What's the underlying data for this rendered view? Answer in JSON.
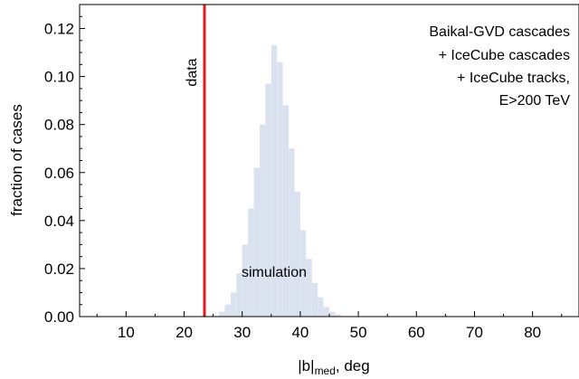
{
  "chart_data": {
    "type": "bar",
    "title": "",
    "xlabel_main": "|b|",
    "xlabel_sub": "med",
    "xlabel_suffix": ", deg",
    "ylabel": "fraction of cases",
    "xlim": [
      2,
      88
    ],
    "ylim": [
      0,
      0.13
    ],
    "x_ticks": [
      10,
      20,
      30,
      40,
      50,
      60,
      70,
      80
    ],
    "y_ticks": [
      0.0,
      0.02,
      0.04,
      0.06,
      0.08,
      0.1,
      0.12
    ],
    "y_tick_labels": [
      "0.00",
      "0.02",
      "0.04",
      "0.06",
      "0.08",
      "0.10",
      "0.12"
    ],
    "bin_width": 1,
    "series": [
      {
        "name": "simulation",
        "color": "#dbe2ef",
        "label_color": "#5f86bf",
        "bin_lefts": [
          26,
          27,
          28,
          29,
          30,
          31,
          32,
          33,
          34,
          35,
          36,
          37,
          38,
          39,
          40,
          41,
          42,
          43,
          44,
          45,
          46
        ],
        "values": [
          0.002,
          0.005,
          0.01,
          0.018,
          0.03,
          0.045,
          0.062,
          0.08,
          0.097,
          0.113,
          0.106,
          0.088,
          0.07,
          0.052,
          0.036,
          0.024,
          0.014,
          0.008,
          0.004,
          0.002,
          0.001
        ]
      }
    ],
    "data_line": {
      "label": "data",
      "x": 23.5,
      "color": "#e41a1c"
    },
    "annotation_lines": [
      "Baikal-GVD cascades",
      "+ IceCube cascades",
      "+ IceCube tracks,",
      "E>200 TeV"
    ]
  }
}
